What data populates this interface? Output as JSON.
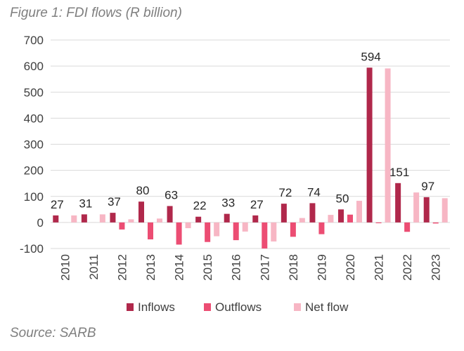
{
  "figure": {
    "title": "Figure 1: FDI flows (R billion)",
    "source": "Source: SARB"
  },
  "chart_data": {
    "type": "bar",
    "categories": [
      "2010",
      "2011",
      "2012",
      "2013",
      "2014",
      "2015",
      "2016",
      "2017",
      "2018",
      "2019",
      "2020",
      "2021",
      "2022",
      "2023"
    ],
    "series": [
      {
        "name": "Inflows",
        "color": "#b0284b",
        "values": [
          27,
          31,
          37,
          80,
          63,
          22,
          33,
          27,
          72,
          74,
          50,
          594,
          151,
          97
        ]
      },
      {
        "name": "Outflows",
        "color": "#ec4d73",
        "values": [
          0,
          0,
          -27,
          -65,
          -85,
          -75,
          -68,
          -100,
          -55,
          -45,
          30,
          -3,
          -36,
          -4
        ]
      },
      {
        "name": "Net flow",
        "color": "#f7b6c4",
        "values": [
          27,
          31,
          12,
          15,
          -22,
          -53,
          -35,
          -73,
          17,
          29,
          83,
          591,
          115,
          93
        ]
      }
    ],
    "data_labels": [
      "27",
      "31",
      "37",
      "80",
      "63",
      "22",
      "33",
      "27",
      "72",
      "74",
      "50",
      "594",
      "151",
      "97"
    ],
    "ylim": [
      -100,
      700
    ],
    "yticks": [
      -100,
      0,
      100,
      200,
      300,
      400,
      500,
      600,
      700
    ],
    "grid": true,
    "legend_position": "bottom"
  }
}
